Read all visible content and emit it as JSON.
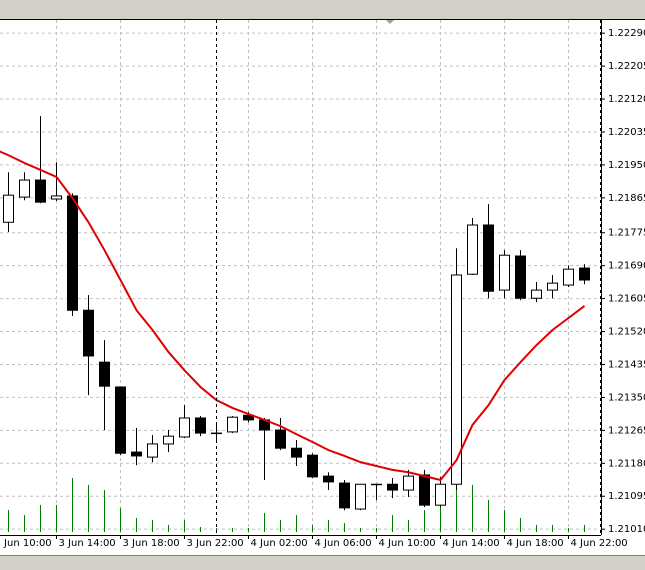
{
  "chart_data": {
    "type": "candlestick",
    "categories": [
      "3 Jun 10:00",
      null,
      null,
      null,
      "3 Jun 14:00",
      null,
      null,
      null,
      "3 Jun 18:00",
      null,
      null,
      null,
      "3 Jun 22:00",
      null,
      null,
      null,
      "4 Jun 02:00",
      null,
      null,
      null,
      "4 Jun 06:00",
      null,
      null,
      null,
      "4 Jun 10:00",
      null,
      null,
      null,
      "4 Jun 14:00",
      null,
      null,
      null,
      "4 Jun 18:00",
      null,
      null,
      null,
      "4 Jun 22:00",
      null
    ],
    "open": [
      null,
      1.21802,
      1.21867,
      1.21911,
      1.21862,
      1.2187,
      1.21575,
      1.21441,
      1.21377,
      1.21209,
      1.21196,
      1.2123,
      1.21248,
      1.21297,
      1.21258,
      1.21261,
      1.21304,
      1.21292,
      1.21266,
      1.21219,
      1.21201,
      1.21147,
      1.21129,
      1.21062,
      1.21126,
      1.21126,
      1.21111,
      1.2115,
      1.21072,
      1.21126,
      1.21668,
      1.21795,
      1.21627,
      1.21715,
      1.21606,
      1.21627,
      1.2164,
      1.21684
    ],
    "high": [
      null,
      1.21931,
      1.21931,
      1.22076,
      1.21957,
      1.21877,
      1.21614,
      1.21498,
      1.21377,
      1.21271,
      1.21253,
      1.21266,
      1.2133,
      1.21302,
      1.21281,
      1.21302,
      1.21312,
      1.21297,
      1.21297,
      1.2124,
      1.21206,
      1.21157,
      1.21137,
      1.21126,
      1.21126,
      1.21142,
      1.21163,
      1.21163,
      1.21145,
      1.21735,
      1.21813,
      1.21849,
      1.2173,
      1.2173,
      1.21648,
      1.21666,
      1.21691,
      1.21694
    ],
    "low": [
      null,
      1.21777,
      1.21859,
      1.21851,
      1.21857,
      1.2156,
      1.21356,
      1.21266,
      1.21201,
      1.21175,
      1.21183,
      1.21209,
      1.21245,
      1.2125,
      1.21235,
      1.21258,
      1.21286,
      1.21137,
      1.21214,
      1.21173,
      1.21142,
      1.21111,
      1.21059,
      1.21059,
      1.21085,
      1.2109,
      1.21093,
      1.21067,
      1.21067,
      1.21111,
      1.21666,
      1.21606,
      1.21606,
      1.21601,
      1.21596,
      1.21606,
      1.21635,
      1.21642
    ],
    "close": [
      null,
      1.21872,
      1.21911,
      1.21854,
      1.2187,
      1.21575,
      1.21457,
      1.21379,
      1.21206,
      1.21199,
      1.2123,
      1.2125,
      1.21297,
      1.21258,
      1.21258,
      1.21299,
      1.21292,
      1.21266,
      1.21219,
      1.21196,
      1.21145,
      1.21132,
      1.21065,
      1.21126,
      1.21126,
      1.21111,
      1.21147,
      1.21072,
      1.21126,
      1.21666,
      1.21795,
      1.21624,
      1.21717,
      1.21606,
      1.21627,
      1.21645,
      1.21681,
      1.21653
    ],
    "bull_color": "#ffffff",
    "bear_color": "#000000",
    "moving_average": {
      "color": "#e00000",
      "values": [
        1.21993,
        1.21975,
        1.21955,
        1.21937,
        1.21919,
        1.21864,
        1.21802,
        1.2173,
        1.21653,
        1.21575,
        1.21524,
        1.21467,
        1.2142,
        1.21377,
        1.21343,
        1.21323,
        1.21307,
        1.21292,
        1.21276,
        1.21255,
        1.21235,
        1.21214,
        1.21199,
        1.21183,
        1.21173,
        1.21163,
        1.21157,
        1.21147,
        1.21137,
        1.21188,
        1.21279,
        1.2133,
        1.21395,
        1.21441,
        1.21485,
        1.21524,
        1.21555,
        1.21586
      ]
    },
    "volume": {
      "color": "#008000",
      "values": [
        null,
        22,
        17,
        27,
        27,
        54,
        47,
        42,
        24,
        14,
        12,
        7,
        12,
        5,
        4,
        4,
        4,
        19,
        12,
        17,
        7,
        12,
        9,
        4,
        4,
        17,
        12,
        22,
        32,
        42,
        47,
        32,
        22,
        14,
        7,
        7,
        4,
        7
      ]
    },
    "ylim": [
      1.20995,
      1.22324
    ],
    "yticks": [
      {
        "value": 1.2229,
        "label": "1.22290"
      },
      {
        "value": 1.22205,
        "label": "1.22205"
      },
      {
        "value": 1.2212,
        "label": "1.22120"
      },
      {
        "value": 1.22035,
        "label": "1.22035"
      },
      {
        "value": 1.2195,
        "label": "1.21950"
      },
      {
        "value": 1.21865,
        "label": "1.21865"
      },
      {
        "value": 1.21775,
        "label": "1.21775"
      },
      {
        "value": 1.2169,
        "label": "1.21690"
      },
      {
        "value": 1.21605,
        "label": "1.21605"
      },
      {
        "value": 1.2152,
        "label": "1.21520"
      },
      {
        "value": 1.21435,
        "label": "1.21435"
      },
      {
        "value": 1.2135,
        "label": "1.21350"
      },
      {
        "value": 1.21265,
        "label": "1.21265"
      },
      {
        "value": 1.2118,
        "label": "1.21180"
      },
      {
        "value": 1.21095,
        "label": "1.21095"
      },
      {
        "value": 1.2101,
        "label": "1.21010"
      }
    ],
    "grid": true
  }
}
